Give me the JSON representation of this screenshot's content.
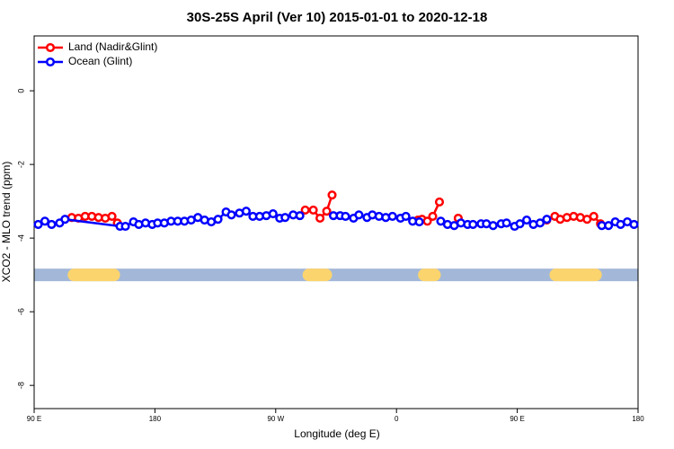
{
  "chart_data": {
    "type": "line",
    "title": "30S-25S April (Ver 10)   2015-01-01 to 2020-12-18",
    "x_label": "Longitude (deg E)",
    "y_label": "XCO2 - MLO trend (ppm)",
    "xlim": [
      90,
      540
    ],
    "ylim": [
      -8.63,
      1.49
    ],
    "xticks": [
      {
        "value": 90,
        "label": "90 E"
      },
      180,
      {
        "value": 270,
        "label": "90 W"
      },
      {
        "value": 360,
        "label": "0"
      },
      {
        "value": 450,
        "label": "90 E"
      },
      {
        "value": 540,
        "label": "180"
      }
    ],
    "yticks": [
      0,
      -2,
      -4,
      -6,
      -8
    ],
    "legend": "top-left",
    "series": [
      {
        "name": "Land (Nadir&Glint)",
        "color": "#ff0000",
        "x": [
          118,
          123,
          128,
          133,
          138,
          143,
          148,
          152,
          null,
          292,
          298,
          303,
          308,
          312,
          null,
          376,
          379,
          383,
          387,
          392,
          null,
          406,
          null,
          472,
          478,
          482,
          487,
          492,
          497,
          502,
          507,
          512
        ],
        "values": [
          -3.44,
          -3.46,
          -3.41,
          -3.41,
          -3.44,
          -3.46,
          -3.41,
          -3.59,
          null,
          -3.24,
          -3.24,
          -3.46,
          -3.27,
          -2.83,
          null,
          -3.51,
          -3.49,
          -3.54,
          -3.41,
          -3.02,
          null,
          -3.46,
          null,
          -3.51,
          -3.41,
          -3.49,
          -3.44,
          -3.41,
          -3.44,
          -3.49,
          -3.41,
          -3.61
        ]
      },
      {
        "name": "Ocean (Glint)",
        "color": "#0000ff",
        "x": [
          93,
          98,
          103,
          109,
          113,
          154,
          158,
          164,
          168,
          173,
          178,
          182,
          187,
          192,
          197,
          202,
          207,
          212,
          217,
          222,
          227,
          233,
          237,
          243,
          248,
          253,
          258,
          263,
          268,
          273,
          277,
          283,
          288,
          null,
          313,
          318,
          322,
          328,
          332,
          338,
          342,
          347,
          352,
          357,
          363,
          367,
          372,
          377,
          null,
          393,
          398,
          403,
          408,
          413,
          417,
          423,
          427,
          432,
          438,
          442,
          448,
          452,
          457,
          462,
          467,
          472,
          null,
          513,
          518,
          523,
          527,
          532,
          537
        ],
        "values": [
          -3.63,
          -3.54,
          -3.63,
          -3.59,
          -3.49,
          -3.68,
          -3.68,
          -3.56,
          -3.63,
          -3.59,
          -3.63,
          -3.59,
          -3.59,
          -3.54,
          -3.54,
          -3.54,
          -3.51,
          -3.44,
          -3.51,
          -3.56,
          -3.49,
          -3.29,
          -3.37,
          -3.32,
          -3.27,
          -3.41,
          -3.41,
          -3.39,
          -3.34,
          -3.46,
          -3.44,
          -3.37,
          -3.39,
          null,
          -3.39,
          -3.39,
          -3.41,
          -3.46,
          -3.37,
          -3.44,
          -3.37,
          -3.41,
          -3.44,
          -3.41,
          -3.46,
          -3.41,
          -3.54,
          -3.56,
          null,
          -3.54,
          -3.63,
          -3.66,
          -3.59,
          -3.63,
          -3.63,
          -3.61,
          -3.61,
          -3.66,
          -3.61,
          -3.59,
          -3.68,
          -3.61,
          -3.51,
          -3.63,
          -3.59,
          -3.49,
          null,
          -3.66,
          -3.66,
          -3.56,
          -3.63,
          -3.56,
          -3.63
        ]
      }
    ],
    "surface_bar": {
      "y": -5,
      "ocean_color": "#a3b8d8",
      "land_color": "#fcd46e",
      "land": [
        [
          115,
          154
        ],
        [
          290,
          312
        ],
        [
          376,
          393
        ],
        [
          474,
          513
        ]
      ]
    }
  }
}
